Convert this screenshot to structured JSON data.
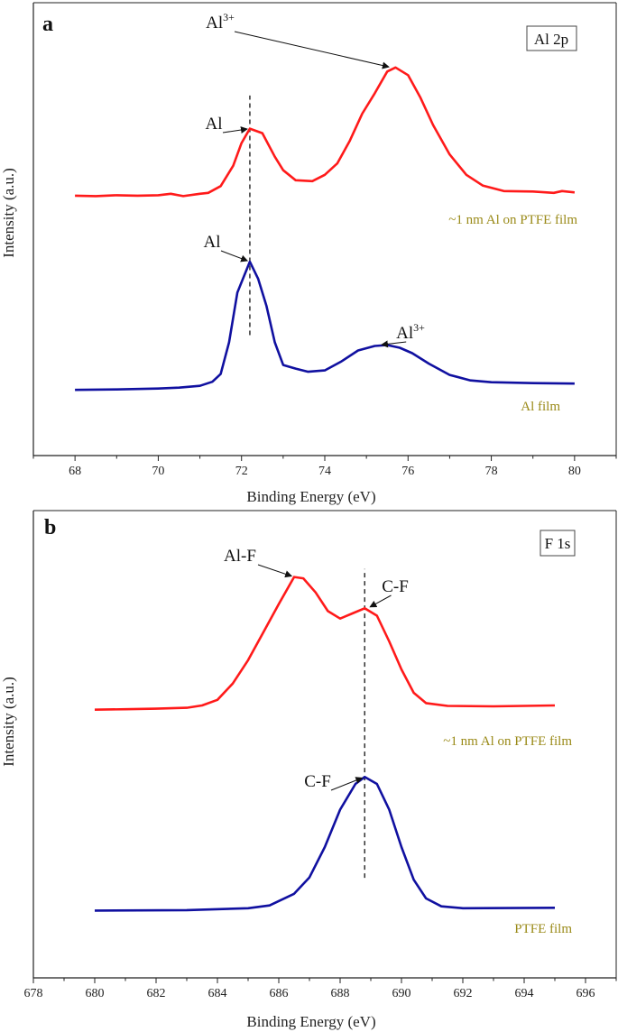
{
  "chart_data": [
    {
      "type": "line",
      "panel_letter": "a",
      "box_label": "Al 2p",
      "xlabel": "Binding Energy (eV)",
      "ylabel": "Intensity (a.u.)",
      "xlim": [
        67,
        81
      ],
      "ylim": [
        0,
        100
      ],
      "xticks": [
        68,
        70,
        72,
        74,
        76,
        78,
        80
      ],
      "grid": false,
      "reference_line_x": 72.2,
      "reference_line_y": [
        26.6,
        79.5
      ],
      "series": [
        {
          "name": "~1 nm Al on PTFE film",
          "color": "#ff1a1a",
          "points": [
            [
              68,
              57.4
            ],
            [
              68.5,
              57.3
            ],
            [
              69,
              57.5
            ],
            [
              69.5,
              57.4
            ],
            [
              70,
              57.5
            ],
            [
              70.3,
              57.8
            ],
            [
              70.6,
              57.3
            ],
            [
              71,
              57.8
            ],
            [
              71.2,
              58
            ],
            [
              71.5,
              59.5
            ],
            [
              71.8,
              64
            ],
            [
              72.0,
              69
            ],
            [
              72.2,
              72.2
            ],
            [
              72.5,
              71.2
            ],
            [
              72.8,
              66
            ],
            [
              73.0,
              63
            ],
            [
              73.3,
              60.8
            ],
            [
              73.7,
              60.6
            ],
            [
              74.0,
              62
            ],
            [
              74.3,
              64.5
            ],
            [
              74.6,
              69.5
            ],
            [
              74.9,
              75.5
            ],
            [
              75.2,
              80
            ],
            [
              75.5,
              84.8
            ],
            [
              75.7,
              85.7
            ],
            [
              76.0,
              84
            ],
            [
              76.3,
              79
            ],
            [
              76.6,
              73
            ],
            [
              77.0,
              66.5
            ],
            [
              77.4,
              62
            ],
            [
              77.8,
              59.6
            ],
            [
              78.3,
              58.4
            ],
            [
              79,
              58.3
            ],
            [
              79.5,
              58
            ],
            [
              79.7,
              58.4
            ],
            [
              80,
              58.1
            ]
          ]
        },
        {
          "name": "Al film",
          "color": "#1010a0",
          "points": [
            [
              68,
              14.5
            ],
            [
              69,
              14.6
            ],
            [
              70,
              14.8
            ],
            [
              70.5,
              15
            ],
            [
              71,
              15.4
            ],
            [
              71.3,
              16.3
            ],
            [
              71.5,
              18
            ],
            [
              71.7,
              25
            ],
            [
              71.9,
              36
            ],
            [
              72.2,
              42.8
            ],
            [
              72.4,
              39
            ],
            [
              72.6,
              33
            ],
            [
              72.8,
              25
            ],
            [
              73.0,
              20
            ],
            [
              73.3,
              19.2
            ],
            [
              73.6,
              18.5
            ],
            [
              74.0,
              18.8
            ],
            [
              74.4,
              20.8
            ],
            [
              74.8,
              23.2
            ],
            [
              75.2,
              24.2
            ],
            [
              75.5,
              24.4
            ],
            [
              75.8,
              23.8
            ],
            [
              76.1,
              22.6
            ],
            [
              76.5,
              20.3
            ],
            [
              77.0,
              17.8
            ],
            [
              77.5,
              16.6
            ],
            [
              78,
              16.2
            ],
            [
              79,
              16
            ],
            [
              80,
              15.9
            ]
          ]
        }
      ],
      "annotations": [
        {
          "text": "Al",
          "target": [
            72.2,
            72.2
          ]
        },
        {
          "text": "Al",
          "sup": "3+",
          "target": [
            75.6,
            85.7
          ]
        },
        {
          "text": "Al",
          "target": [
            72.2,
            42.8
          ]
        },
        {
          "text": "Al",
          "sup": "3+",
          "target": [
            75.3,
            24.4
          ]
        }
      ]
    },
    {
      "type": "line",
      "panel_letter": "b",
      "box_label": "F 1s",
      "xlabel": "Binding Energy (eV)",
      "ylabel": "Intensity (a.u.)",
      "xlim": [
        678,
        697
      ],
      "ylim": [
        0,
        100
      ],
      "xticks": [
        678,
        680,
        682,
        684,
        686,
        688,
        690,
        692,
        694,
        696
      ],
      "grid": false,
      "reference_line_x": 688.8,
      "reference_line_y": [
        21.4,
        87.5
      ],
      "series": [
        {
          "name": "~1 nm Al on PTFE film",
          "color": "#ff1a1a",
          "points": [
            [
              680,
              57.4
            ],
            [
              681,
              57.5
            ],
            [
              682,
              57.6
            ],
            [
              683,
              57.8
            ],
            [
              683.5,
              58.3
            ],
            [
              684,
              59.5
            ],
            [
              684.5,
              63
            ],
            [
              685,
              68
            ],
            [
              685.5,
              74
            ],
            [
              686,
              80
            ],
            [
              686.5,
              85.8
            ],
            [
              686.8,
              85.5
            ],
            [
              687.2,
              82.5
            ],
            [
              687.6,
              78.5
            ],
            [
              688,
              76.9
            ],
            [
              688.4,
              78
            ],
            [
              688.8,
              79.1
            ],
            [
              689.2,
              77.5
            ],
            [
              689.6,
              72
            ],
            [
              690,
              66
            ],
            [
              690.4,
              61
            ],
            [
              690.8,
              58.8
            ],
            [
              691.5,
              58.2
            ],
            [
              693,
              58.1
            ],
            [
              695,
              58.3
            ]
          ]
        },
        {
          "name": "PTFE film",
          "color": "#1010a0",
          "points": [
            [
              680,
              14.4
            ],
            [
              683,
              14.5
            ],
            [
              685,
              14.9
            ],
            [
              685.7,
              15.5
            ],
            [
              686.5,
              18
            ],
            [
              687,
              21.5
            ],
            [
              687.5,
              28
            ],
            [
              688,
              36
            ],
            [
              688.5,
              41.5
            ],
            [
              688.8,
              43
            ],
            [
              689.2,
              41.5
            ],
            [
              689.6,
              36
            ],
            [
              690,
              28
            ],
            [
              690.4,
              21
            ],
            [
              690.8,
              17
            ],
            [
              691.3,
              15.3
            ],
            [
              692,
              14.9
            ],
            [
              695,
              15
            ]
          ]
        }
      ],
      "annotations": [
        {
          "text": "Al-F",
          "target": [
            686.5,
            85.8
          ]
        },
        {
          "text": "C-F",
          "target": [
            688.9,
            79.1
          ]
        },
        {
          "text": "C-F",
          "target": [
            688.8,
            43
          ]
        }
      ]
    }
  ]
}
